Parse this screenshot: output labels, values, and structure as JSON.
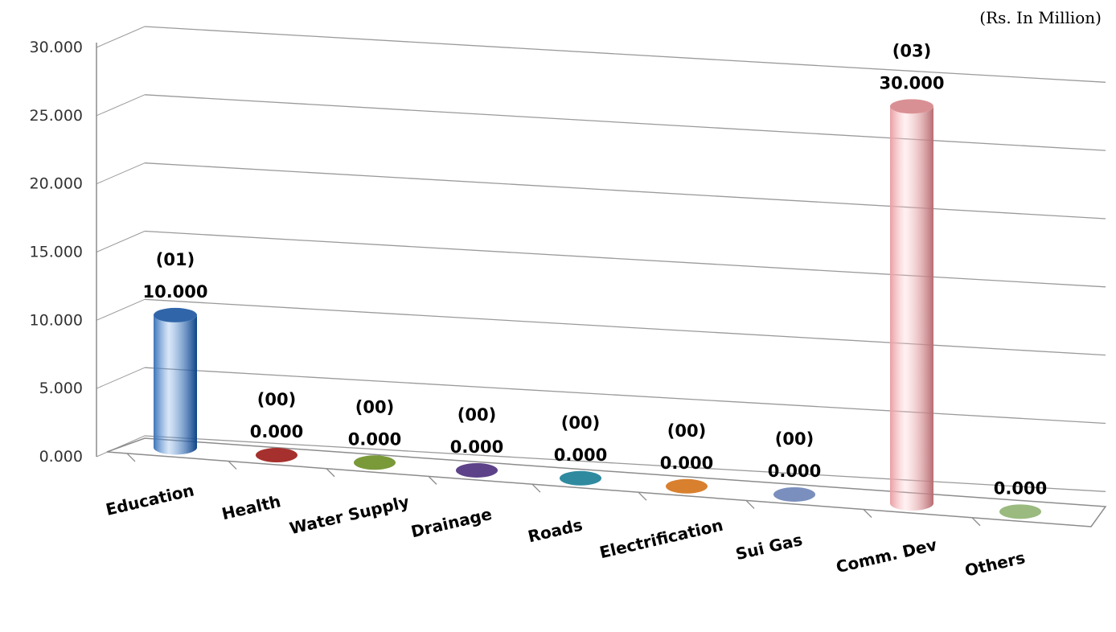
{
  "chart_data": {
    "type": "bar",
    "style": "3d-cylinder",
    "unit_note": "(Rs. In Million)",
    "categories": [
      "Education",
      "Health",
      "Water Supply",
      "Drainage",
      "Roads",
      "Electrification",
      "Sui Gas",
      "Comm. Dev",
      "Others"
    ],
    "values": [
      10.0,
      0.0,
      0.0,
      0.0,
      0.0,
      0.0,
      0.0,
      30.0,
      0.0
    ],
    "counts": [
      "(01)",
      "(00)",
      "(00)",
      "(00)",
      "(00)",
      "(00)",
      "(00)",
      "(03)",
      ""
    ],
    "value_labels": [
      "10.000",
      "0.000",
      "0.000",
      "0.000",
      "0.000",
      "0.000",
      "0.000",
      "30.000",
      "0.000"
    ],
    "colors": [
      "#3f75b8",
      "#a6302d",
      "#7a9a3a",
      "#5d4289",
      "#2f8aa0",
      "#d8802e",
      "#7a8fbd",
      "#e89fa3",
      "#9aba7f"
    ],
    "ylim": [
      0,
      30
    ],
    "yticks": [
      "0.000",
      "5.000",
      "10.000",
      "15.000",
      "20.000",
      "25.000",
      "30.000"
    ],
    "grid": true,
    "legend": "none"
  }
}
